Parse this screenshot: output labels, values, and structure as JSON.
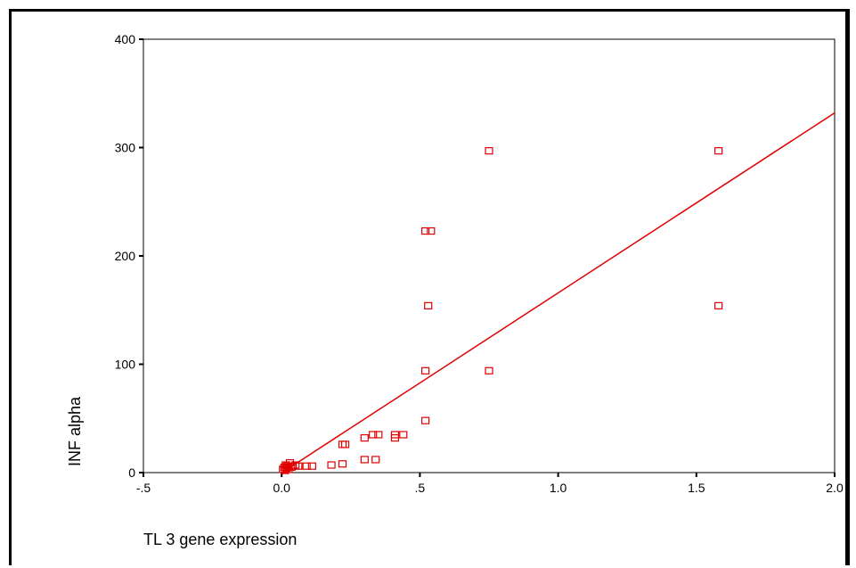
{
  "chart_data": {
    "type": "scatter",
    "xlabel": "TL 3 gene expression",
    "ylabel": "INF alpha",
    "xlim": [
      -0.5,
      2.0
    ],
    "ylim": [
      0,
      400
    ],
    "x_ticks": [
      -0.5,
      0.0,
      0.5,
      1.0,
      1.5,
      2.0
    ],
    "x_tick_labels": [
      "-.5",
      "0.0",
      ".5",
      "1.0",
      "1.5",
      "2.0"
    ],
    "y_ticks": [
      0,
      100,
      200,
      300,
      400
    ],
    "y_tick_labels": [
      "0",
      "100",
      "200",
      "300",
      "400"
    ],
    "grid": false,
    "marker": "open-square",
    "colors": {
      "points": "#e00000",
      "fit_line": "#e00000",
      "axes": "#000000"
    },
    "points": [
      {
        "x": 0.005,
        "y": 3
      },
      {
        "x": 0.01,
        "y": 5
      },
      {
        "x": 0.012,
        "y": 2
      },
      {
        "x": 0.015,
        "y": 7
      },
      {
        "x": 0.018,
        "y": 4
      },
      {
        "x": 0.02,
        "y": 6
      },
      {
        "x": 0.025,
        "y": 3
      },
      {
        "x": 0.03,
        "y": 9
      },
      {
        "x": 0.035,
        "y": 5
      },
      {
        "x": 0.04,
        "y": 6
      },
      {
        "x": 0.05,
        "y": 7
      },
      {
        "x": 0.06,
        "y": 6
      },
      {
        "x": 0.09,
        "y": 6
      },
      {
        "x": 0.11,
        "y": 6
      },
      {
        "x": 0.18,
        "y": 7
      },
      {
        "x": 0.22,
        "y": 8
      },
      {
        "x": 0.22,
        "y": 26
      },
      {
        "x": 0.23,
        "y": 26
      },
      {
        "x": 0.3,
        "y": 12
      },
      {
        "x": 0.3,
        "y": 32
      },
      {
        "x": 0.34,
        "y": 12
      },
      {
        "x": 0.33,
        "y": 35
      },
      {
        "x": 0.35,
        "y": 35
      },
      {
        "x": 0.41,
        "y": 32
      },
      {
        "x": 0.41,
        "y": 35
      },
      {
        "x": 0.44,
        "y": 35
      },
      {
        "x": 0.52,
        "y": 48
      },
      {
        "x": 0.52,
        "y": 94
      },
      {
        "x": 0.53,
        "y": 154
      },
      {
        "x": 0.52,
        "y": 223
      },
      {
        "x": 0.54,
        "y": 223
      },
      {
        "x": 0.75,
        "y": 94
      },
      {
        "x": 0.75,
        "y": 297
      },
      {
        "x": 1.58,
        "y": 154
      },
      {
        "x": 1.58,
        "y": 297
      }
    ],
    "fit_line": {
      "x": [
        0.0,
        2.0
      ],
      "y": [
        -0.3,
        332
      ]
    }
  }
}
